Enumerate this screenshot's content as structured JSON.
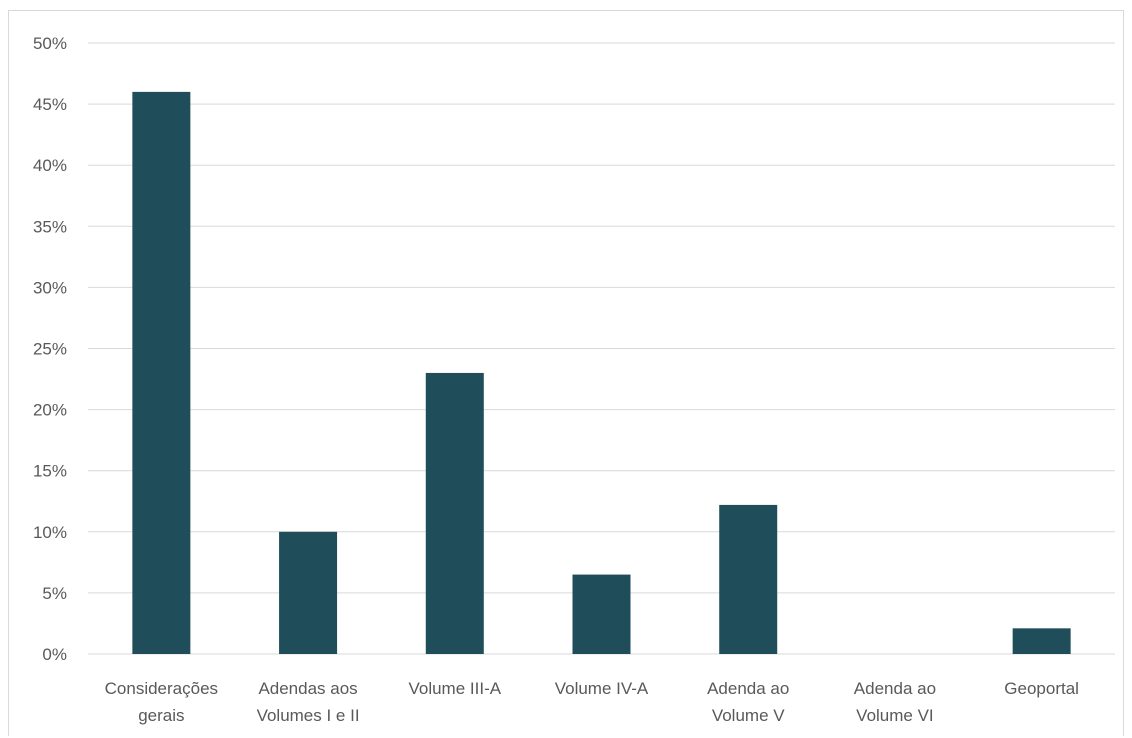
{
  "chart_data": {
    "type": "bar",
    "categories": [
      [
        "Considerações",
        "gerais"
      ],
      [
        "Adendas aos",
        "Volumes I e II"
      ],
      [
        "Volume III-A"
      ],
      [
        "Volume IV-A"
      ],
      [
        "Adenda ao",
        "Volume V"
      ],
      [
        "Adenda ao",
        "Volume VI"
      ],
      [
        "Geoportal"
      ]
    ],
    "values": [
      0.46,
      0.1,
      0.23,
      0.065,
      0.122,
      0.0,
      0.021
    ],
    "ylim": [
      0,
      0.5
    ],
    "yticks": [
      0,
      0.05,
      0.1,
      0.15,
      0.2,
      0.25,
      0.3,
      0.35,
      0.4,
      0.45,
      0.5
    ],
    "ytick_labels": [
      "0%",
      "5%",
      "10%",
      "15%",
      "20%",
      "25%",
      "30%",
      "35%",
      "40%",
      "45%",
      "50%"
    ],
    "title": "",
    "xlabel": "",
    "ylabel": "",
    "grid": true,
    "legend": "none",
    "colors": {
      "bar": "#1f4e5a",
      "grid": "#d9d9d9",
      "text": "#595959"
    }
  }
}
